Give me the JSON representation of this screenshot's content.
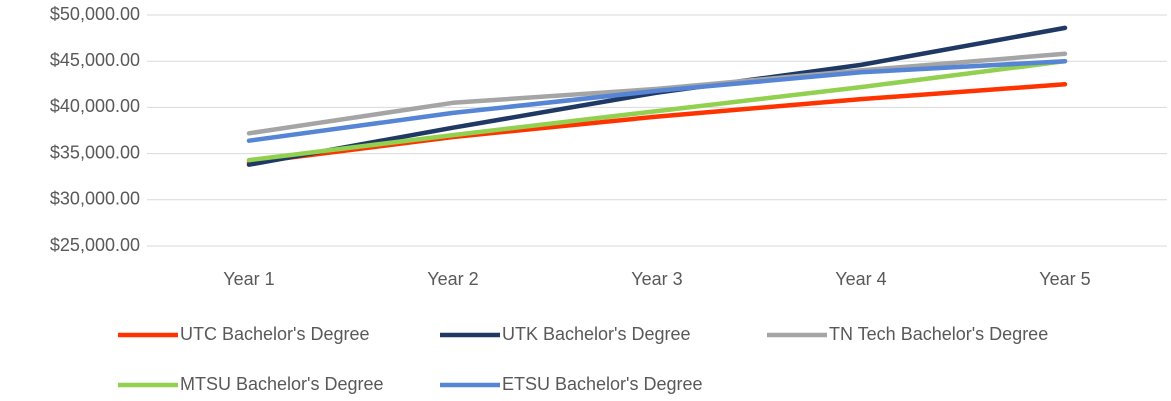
{
  "chart_data": {
    "type": "line",
    "categories": [
      "Year 1",
      "Year 2",
      "Year 3",
      "Year 4",
      "Year 5"
    ],
    "series": [
      {
        "name": "UTC Bachelor's Degree",
        "color": "#ff3300",
        "values": [
          34000,
          36800,
          39000,
          40900,
          42500
        ]
      },
      {
        "name": "UTK Bachelor's Degree",
        "color": "#1f3864",
        "values": [
          33800,
          37800,
          41600,
          44600,
          48600
        ]
      },
      {
        "name": "TN Tech Bachelor's Degree",
        "color": "#a5a5a5",
        "values": [
          37200,
          40500,
          42000,
          44000,
          45800
        ]
      },
      {
        "name": "MTSU Bachelor's Degree",
        "color": "#92d050",
        "values": [
          34300,
          37000,
          39600,
          42200,
          45000
        ]
      },
      {
        "name": "ETSU Bachelor's Degree",
        "color": "#5585d4",
        "values": [
          36400,
          39400,
          41800,
          43800,
          45000
        ]
      }
    ],
    "ylim": [
      25000,
      50000
    ],
    "yticks": [
      {
        "value": 25000,
        "label": "$25,000.00"
      },
      {
        "value": 30000,
        "label": "$30,000.00"
      },
      {
        "value": 35000,
        "label": "$35,000.00"
      },
      {
        "value": 40000,
        "label": "$40,000.00"
      },
      {
        "value": 45000,
        "label": "$45,000.00"
      },
      {
        "value": 50000,
        "label": "$50,000.00"
      }
    ],
    "grid": true,
    "legend": "bottom"
  }
}
